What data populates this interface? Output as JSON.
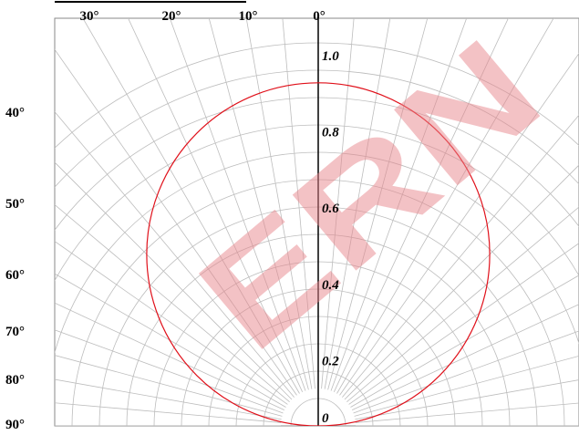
{
  "chart_data": {
    "type": "polar-line",
    "title": "",
    "angle_unit": "°",
    "angle_ticks_top": [
      "30°",
      "20°",
      "10°",
      "0°"
    ],
    "angle_ticks_left": [
      "40°",
      "50°",
      "60°",
      "70°",
      "80°",
      "90°"
    ],
    "radial_ticks": [
      "1.0",
      "0.8",
      "0.6",
      "0.4",
      "0.2",
      "0"
    ],
    "radial_range": [
      0,
      1.0
    ],
    "grid": true,
    "series": [
      {
        "color": "#e0101a",
        "shape": "circle",
        "angles_deg": [
          0,
          10,
          20,
          30,
          40,
          50,
          60,
          70,
          80,
          90
        ],
        "values": [
          0.9,
          0.886,
          0.846,
          0.779,
          0.689,
          0.579,
          0.45,
          0.308,
          0.156,
          0.0
        ]
      }
    ],
    "watermark": {
      "text": "ERN",
      "color": "#e8868c"
    }
  }
}
